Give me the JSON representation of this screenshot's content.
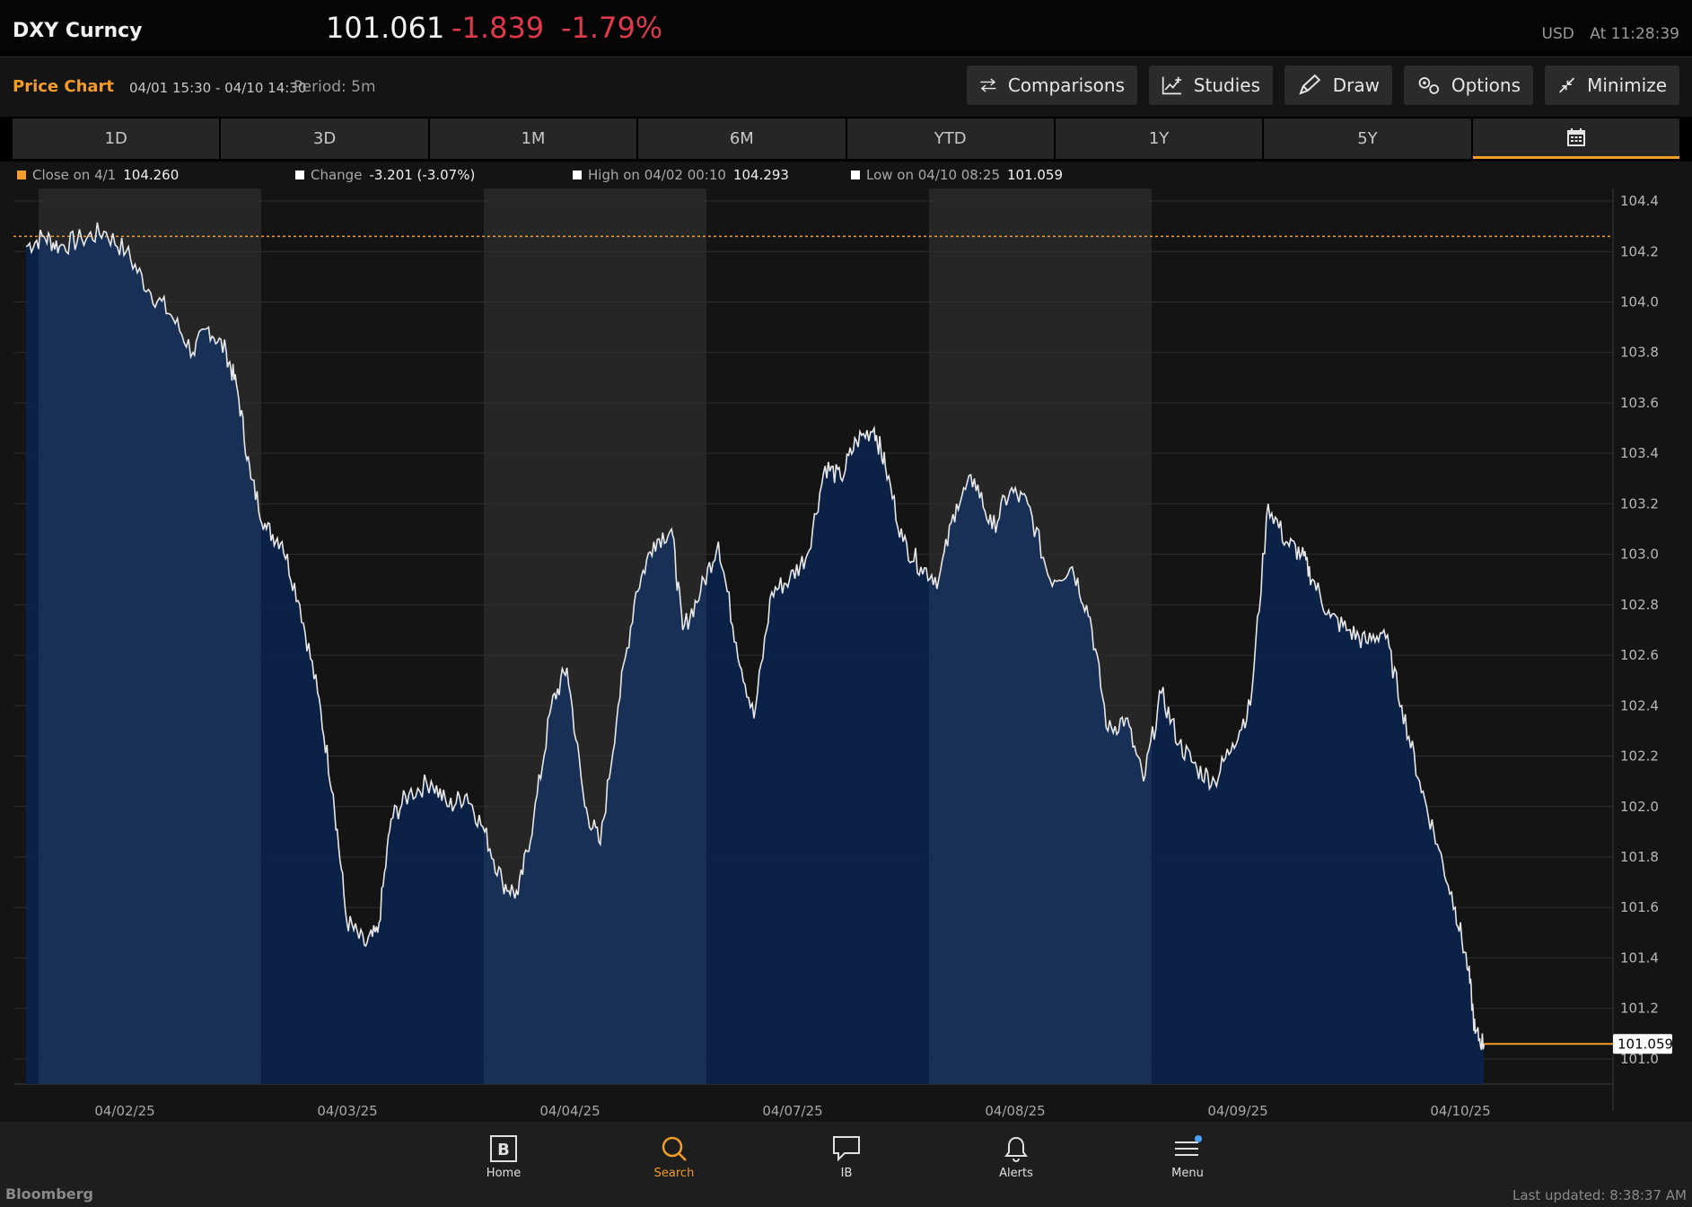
{
  "header": {
    "ticker": "DXY Curncy",
    "price": "101.061",
    "change": "-1.839",
    "change_pct": "-1.79%",
    "currency": "USD",
    "time": "At 11:28:39"
  },
  "toolbar": {
    "title": "Price Chart",
    "range": "04/01 15:30 - 04/10 14:30",
    "period": "Period: 5m",
    "buttons": {
      "comparisons": "Comparisons",
      "studies": "Studies",
      "draw": "Draw",
      "options": "Options",
      "minimize": "Minimize"
    }
  },
  "tabs": [
    "1D",
    "3D",
    "1M",
    "6M",
    "YTD",
    "1Y",
    "5Y"
  ],
  "tab_calendar_icon": "calendar-icon",
  "legend": {
    "close": {
      "label": "Close on 4/1",
      "value": "104.260",
      "color": "#f39c28"
    },
    "change": {
      "label": "Change",
      "value": "-3.201 (-3.07%)",
      "color": "#ffffff"
    },
    "high": {
      "label": "High on 04/02 00:10",
      "value": "104.293",
      "color": "#ffffff"
    },
    "low": {
      "label": "Low on 04/10 08:25",
      "value": "101.059",
      "color": "#ffffff"
    }
  },
  "colors": {
    "accent": "#f39c28",
    "negative": "#e03a4a",
    "line": "#e8e8e8",
    "fill": "#0b2248",
    "fill_shaded": "#183055"
  },
  "chart_data": {
    "type": "area",
    "ylim": [
      100.9,
      104.45
    ],
    "yticks": [
      "101.0",
      "101.2",
      "101.4",
      "101.6",
      "101.8",
      "102.0",
      "102.2",
      "102.4",
      "102.6",
      "102.8",
      "103.0",
      "103.2",
      "103.4",
      "103.6",
      "103.8",
      "104.0",
      "104.2",
      "104.4"
    ],
    "date_labels": [
      "04/02/25",
      "04/03/25",
      "04/04/25",
      "04/07/25",
      "04/08/25",
      "04/09/25",
      "04/10/25"
    ],
    "reference_line": {
      "value": 104.26
    },
    "last_value": {
      "value": 101.059,
      "label": "101.059"
    },
    "grid": true,
    "points": [
      [
        0,
        104.22
      ],
      [
        0.8,
        104.26
      ],
      [
        1.5,
        104.22
      ],
      [
        2.5,
        104.25
      ],
      [
        3.5,
        104.28
      ],
      [
        4.5,
        104.2
      ],
      [
        5.5,
        104.05
      ],
      [
        6.5,
        103.95
      ],
      [
        7.5,
        103.8
      ],
      [
        8.2,
        103.9
      ],
      [
        9,
        103.8
      ],
      [
        9.5,
        103.65
      ],
      [
        10.1,
        103.3
      ],
      [
        10.8,
        103.1
      ],
      [
        11.5,
        103.05
      ],
      [
        12.3,
        102.8
      ],
      [
        13.1,
        102.45
      ],
      [
        13.8,
        102.05
      ],
      [
        14.4,
        101.55
      ],
      [
        15.2,
        101.45
      ],
      [
        15.8,
        101.5
      ],
      [
        16.4,
        101.95
      ],
      [
        17.2,
        102.05
      ],
      [
        18.2,
        102.1
      ],
      [
        19,
        102.0
      ],
      [
        19.8,
        102.05
      ],
      [
        20.6,
        101.9
      ],
      [
        21.4,
        101.7
      ],
      [
        22.1,
        101.65
      ],
      [
        22.8,
        101.95
      ],
      [
        23.6,
        102.4
      ],
      [
        24.3,
        102.55
      ],
      [
        25.1,
        102.0
      ],
      [
        25.8,
        101.85
      ],
      [
        26.6,
        102.4
      ],
      [
        27.4,
        102.85
      ],
      [
        28.2,
        103.05
      ],
      [
        29,
        103.1
      ],
      [
        29.5,
        102.7
      ],
      [
        30.3,
        102.85
      ],
      [
        31.1,
        103.05
      ],
      [
        31.9,
        102.65
      ],
      [
        32.7,
        102.35
      ],
      [
        33.5,
        102.85
      ],
      [
        34.3,
        102.9
      ],
      [
        35.1,
        103.0
      ],
      [
        35.9,
        103.35
      ],
      [
        36.6,
        103.3
      ],
      [
        37.3,
        103.45
      ],
      [
        38.1,
        103.5
      ],
      [
        38.6,
        103.35
      ],
      [
        39.4,
        103.05
      ],
      [
        40.2,
        102.95
      ],
      [
        41,
        102.9
      ],
      [
        41.8,
        103.2
      ],
      [
        42.6,
        103.3
      ],
      [
        43.4,
        103.1
      ],
      [
        44.2,
        103.25
      ],
      [
        45,
        103.2
      ],
      [
        46,
        102.9
      ],
      [
        47,
        102.95
      ],
      [
        47.8,
        102.75
      ],
      [
        48.6,
        102.3
      ],
      [
        49.4,
        102.35
      ],
      [
        50.2,
        102.1
      ],
      [
        51,
        102.45
      ],
      [
        51.8,
        102.25
      ],
      [
        52.6,
        102.15
      ],
      [
        53.4,
        102.1
      ],
      [
        54.2,
        102.25
      ],
      [
        55,
        102.4
      ],
      [
        55.8,
        103.2
      ],
      [
        56.6,
        103.05
      ],
      [
        57.3,
        103.0
      ],
      [
        57.8,
        102.9
      ],
      [
        58.6,
        102.75
      ],
      [
        59.4,
        102.7
      ],
      [
        60.2,
        102.65
      ],
      [
        61,
        102.7
      ],
      [
        61.8,
        102.4
      ],
      [
        62.6,
        102.1
      ],
      [
        63.4,
        101.85
      ],
      [
        64.2,
        101.6
      ],
      [
        64.8,
        101.35
      ],
      [
        65.1,
        101.1
      ],
      [
        65.5,
        101.059
      ],
      [
        66,
        101.059
      ],
      [
        68.6,
        101.059
      ]
    ]
  },
  "nav": {
    "home": "Home",
    "search": "Search",
    "ib": "IB",
    "alerts": "Alerts",
    "menu": "Menu"
  },
  "footer": {
    "brand": "Bloomberg",
    "updated": "Last updated: 8:38:37 AM"
  }
}
